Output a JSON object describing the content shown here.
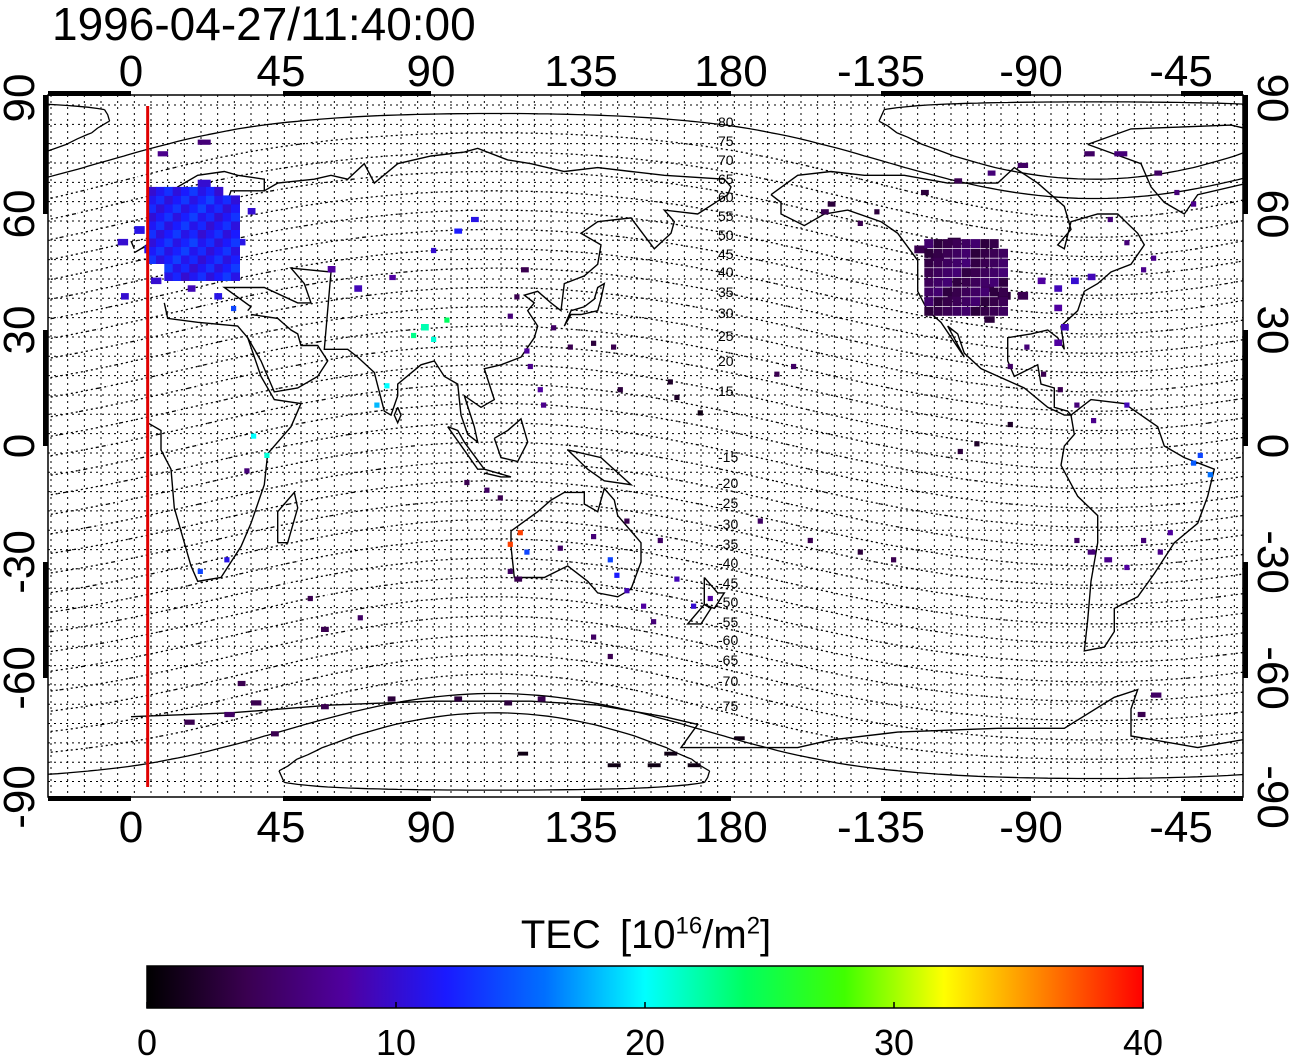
{
  "title": "1996-04-27/11:40:00",
  "map": {
    "top_axis_labels": [
      "0",
      "45",
      "90",
      "135",
      "180",
      "-135",
      "-90",
      "-45"
    ],
    "bottom_axis_labels": [
      "0",
      "45",
      "90",
      "135",
      "180",
      "-135",
      "-90",
      "-45"
    ],
    "left_axis_labels": [
      "90",
      "60",
      "30",
      "0",
      "-30",
      "-60",
      "-90"
    ],
    "right_axis_labels": [
      "90",
      "60",
      "30",
      "0",
      "-30",
      "-60",
      "-90"
    ],
    "contour_labels": [
      "80",
      "75",
      "70",
      "65",
      "60",
      "55",
      "50",
      "45",
      "40",
      "35",
      "30",
      "25",
      "20",
      "15",
      "-15",
      "-20",
      "-25",
      "-30",
      "-35",
      "-40",
      "-45",
      "-50",
      "-55",
      "-60",
      "-65",
      "-70",
      "-75"
    ],
    "marker_longitude": 5,
    "marker_color": "#e00000",
    "grid": "dotted"
  },
  "colorbar": {
    "title_text": "TEC",
    "unit_prefix": "[10",
    "unit_exp": "16",
    "unit_mid": "/m",
    "unit_exp2": "2",
    "unit_suffix": "]",
    "tick_labels": [
      "0",
      "10",
      "20",
      "30",
      "40"
    ],
    "range": [
      0,
      40
    ],
    "colormap": [
      "#000000",
      "#3a0050",
      "#5000a0",
      "#1a1aff",
      "#0070ff",
      "#00ffff",
      "#00ff60",
      "#40ff00",
      "#ffff00",
      "#ff8000",
      "#ff0000"
    ]
  }
}
